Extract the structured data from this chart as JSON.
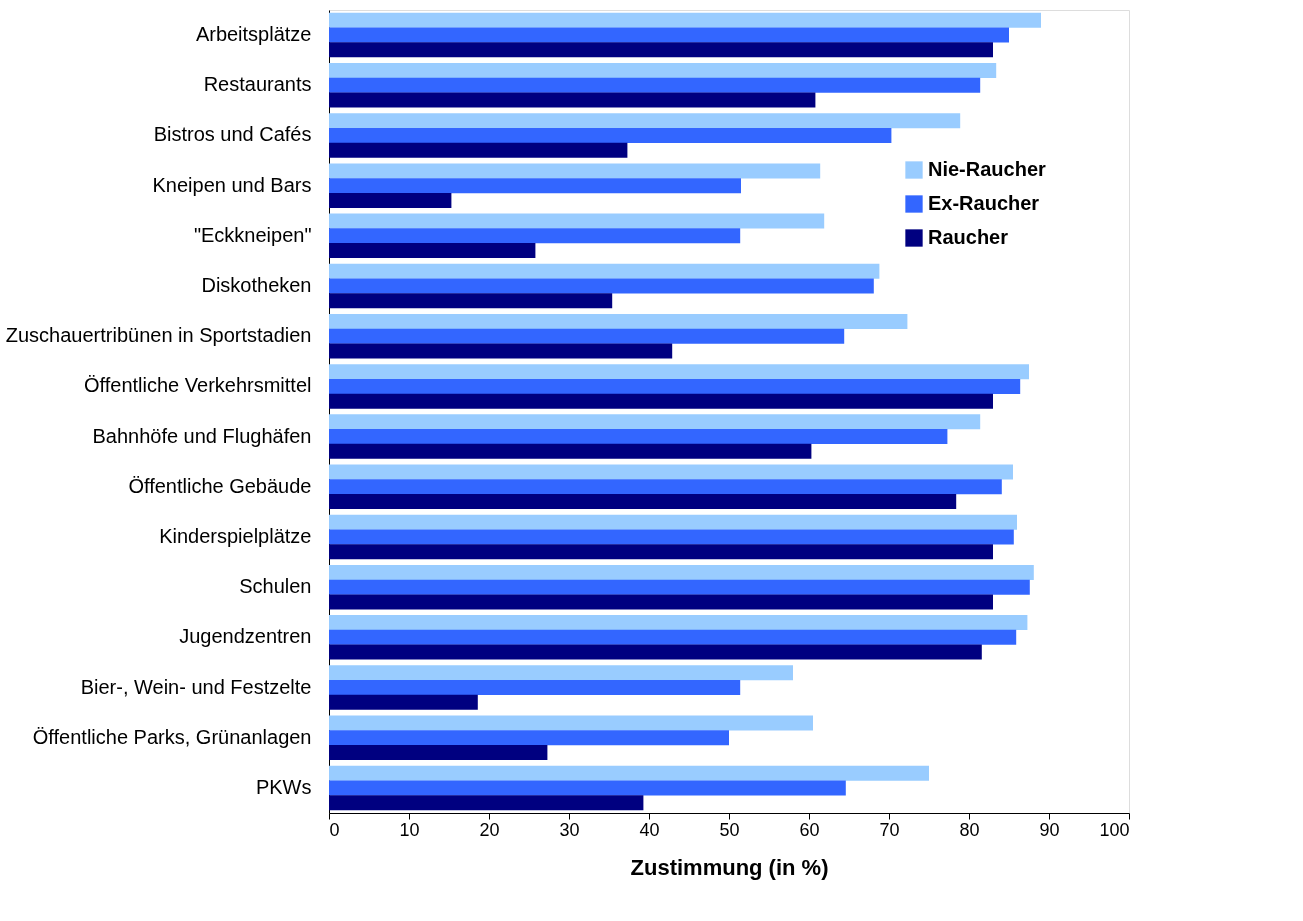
{
  "chart_data": {
    "type": "bar",
    "orientation": "horizontal",
    "xlabel": "Zustimmung (in %)",
    "categories": [
      "Arbeitsplätze",
      "Restaurants",
      "Bistros und Cafés",
      "Kneipen und Bars",
      "\"Eckkneipen\"",
      "Diskotheken",
      "Zuschauertribünen in Sportstadien",
      "Öffentliche Verkehrsmittel",
      "Bahnhöfe und Flughäfen",
      "Öffentliche Gebäude",
      "Kinderspielplätze",
      "Schulen",
      "Jugendzentren",
      "Bier-, Wein- und Festzelte",
      "Öffentliche Parks, Grünanlagen",
      "PKWs"
    ],
    "series": [
      {
        "name": "Nie-Raucher",
        "color": "#99ccff",
        "values": [
          89,
          83.4,
          78.9,
          61.4,
          61.9,
          68.8,
          72.3,
          87.5,
          81.4,
          85.5,
          86,
          88.1,
          87.3,
          58,
          60.5,
          75
        ]
      },
      {
        "name": "Ex-Raucher",
        "color": "#3366ff",
        "values": [
          85,
          81.4,
          70.3,
          51.5,
          51.4,
          68.1,
          64.4,
          86.4,
          77.3,
          84.1,
          85.6,
          87.6,
          85.9,
          51.4,
          50,
          64.6
        ]
      },
      {
        "name": "Raucher",
        "color": "#000080",
        "values": [
          83,
          60.8,
          37.3,
          15.3,
          25.8,
          35.4,
          42.9,
          83,
          60.3,
          78.4,
          83,
          83,
          81.6,
          18.6,
          27.3,
          39.3
        ]
      }
    ],
    "xlim": [
      0,
      100
    ],
    "xticks": [
      0,
      10,
      20,
      30,
      40,
      50,
      60,
      70,
      80,
      90,
      100
    ],
    "grid": false,
    "legend": "right"
  }
}
